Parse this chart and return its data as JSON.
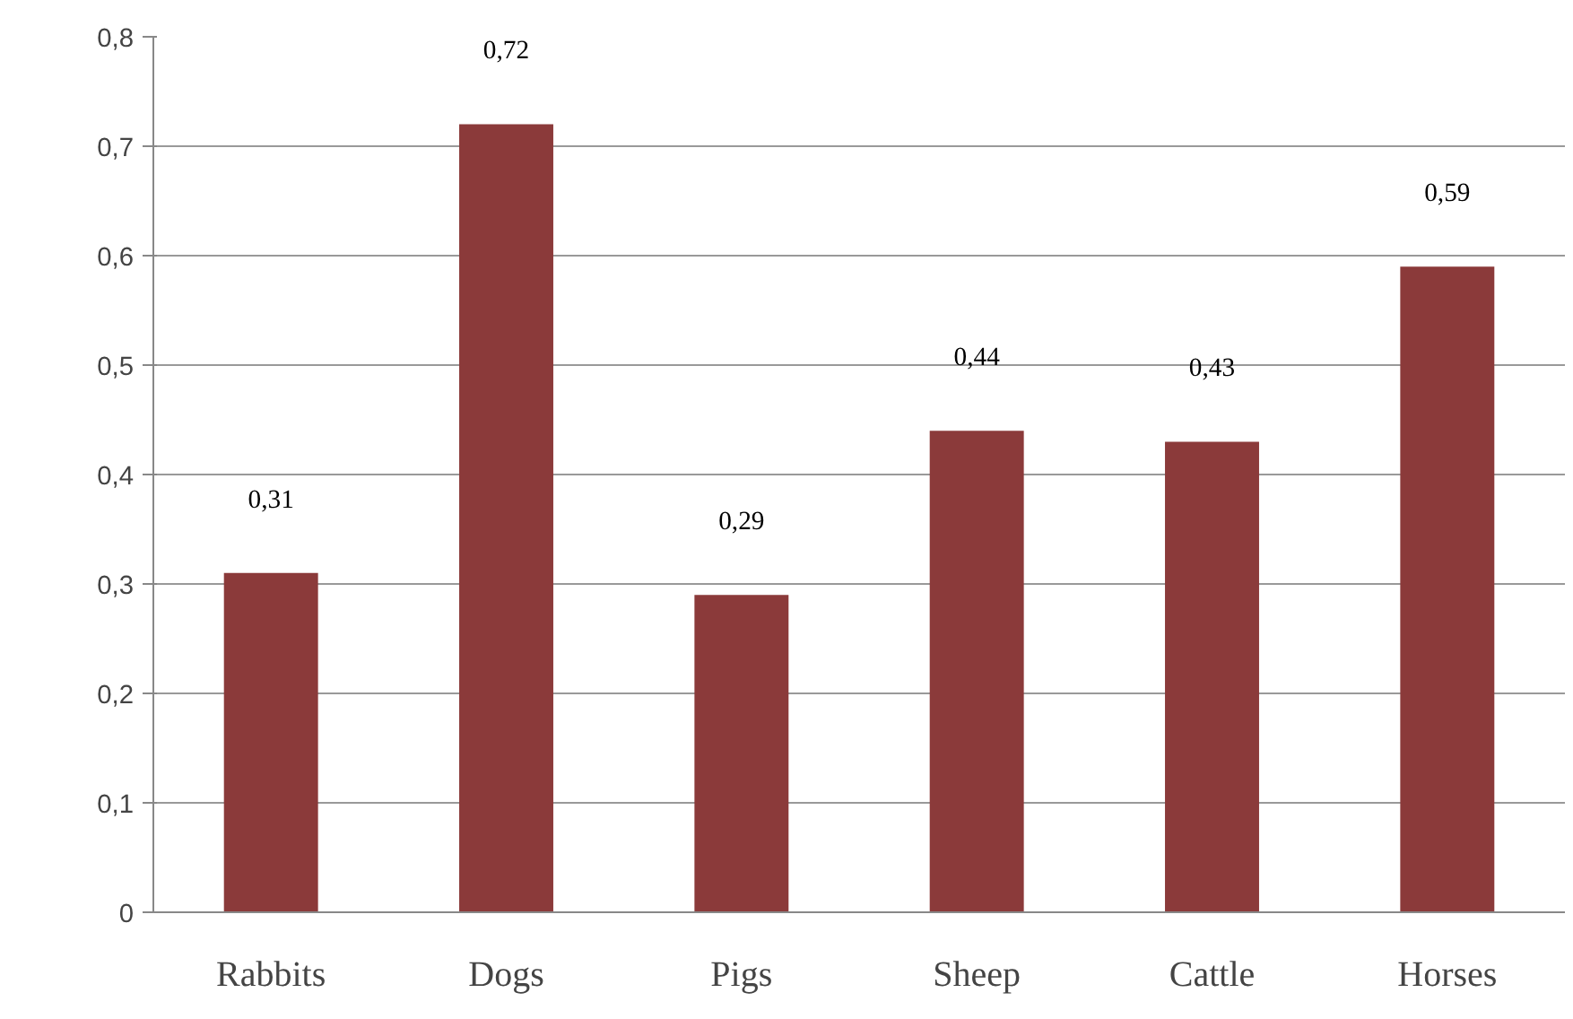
{
  "chart_data": {
    "type": "bar",
    "categories": [
      "Rabbits",
      "Dogs",
      "Pigs",
      "Sheep",
      "Cattle",
      "Horses"
    ],
    "values": [
      0.31,
      0.72,
      0.29,
      0.44,
      0.43,
      0.59
    ],
    "value_labels": [
      "0,31",
      "0,72",
      "0,29",
      "0,44",
      "0,43",
      "0,59"
    ],
    "color": "#8b3a3a",
    "ylim": [
      0,
      0.8
    ],
    "yticks": [
      0,
      {
        "value": 0.1,
        "label": "0,1"
      },
      {
        "value": 0.2,
        "label": "0,2"
      },
      {
        "value": 0.3,
        "label": "0,3"
      },
      {
        "value": 0.4,
        "label": "0,4"
      },
      {
        "value": 0.5,
        "label": "0,5"
      },
      {
        "value": 0.6,
        "label": "0,6"
      },
      {
        "value": 0.7,
        "label": "0,7"
      },
      {
        "value": 0.8,
        "label": "0,8"
      }
    ],
    "grid": "y"
  }
}
